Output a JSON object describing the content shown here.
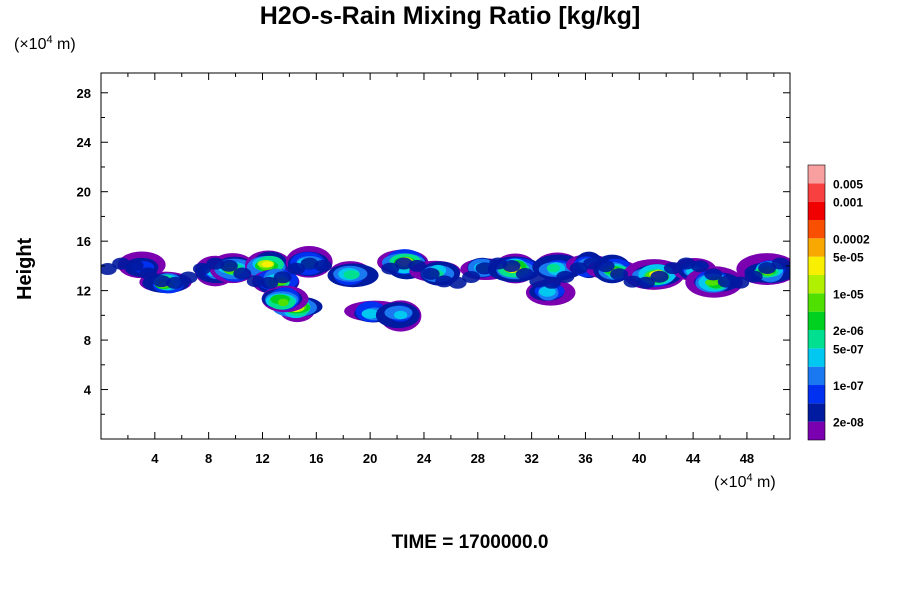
{
  "chart_data": {
    "type": "heatmap",
    "title": "H2O-s-Rain Mixing Ratio [kg/kg]",
    "ylabel": "Height",
    "y_unit": "(×10",
    "y_unit_exp": "4",
    "y_unit_suffix": " m)",
    "x_unit": "(×10",
    "x_unit_exp": "4",
    "x_unit_suffix": " m)",
    "xlim": [
      0,
      51.2
    ],
    "ylim": [
      0,
      29.6
    ],
    "x_ticks": [
      4,
      8,
      12,
      16,
      20,
      24,
      28,
      32,
      36,
      40,
      44,
      48
    ],
    "y_ticks": [
      4,
      8,
      12,
      16,
      20,
      24,
      28
    ],
    "x_tick_labels": [
      "4",
      "8",
      "12",
      "16",
      "20",
      "24",
      "28",
      "32",
      "36",
      "40",
      "44",
      "48"
    ],
    "y_tick_labels": [
      "4",
      "8",
      "12",
      "16",
      "20",
      "24",
      "28"
    ],
    "colorbar": {
      "levels": [
        "2e-08",
        "1e-07",
        "5e-07",
        "2e-06",
        "1e-05",
        "5e-05",
        "0.0002",
        "0.001",
        "0.005"
      ],
      "colors": [
        "#7a00b0",
        "#001aa0",
        "#0030f0",
        "#1a78f0",
        "#00c8f0",
        "#00e090",
        "#00d020",
        "#50e000",
        "#b0f000",
        "#f8f000",
        "#f8a800",
        "#f85000",
        "#f00000",
        "#f84040",
        "#f8a0a0"
      ]
    },
    "cells": [
      {
        "x": 3.2,
        "y": 14.0,
        "value": "1e-07"
      },
      {
        "x": 4.8,
        "y": 12.6,
        "value": "1e-05"
      },
      {
        "x": 8.5,
        "y": 13.5,
        "value": "5e-07"
      },
      {
        "x": 9.8,
        "y": 13.8,
        "value": "1e-05"
      },
      {
        "x": 12.4,
        "y": 14.0,
        "value": "5e-05"
      },
      {
        "x": 13.2,
        "y": 12.8,
        "value": "1e-05"
      },
      {
        "x": 15.3,
        "y": 14.3,
        "value": "2e-06"
      },
      {
        "x": 14.6,
        "y": 10.6,
        "value": "5e-05"
      },
      {
        "x": 13.5,
        "y": 11.2,
        "value": "1e-05"
      },
      {
        "x": 18.6,
        "y": 13.3,
        "value": "2e-06"
      },
      {
        "x": 22.6,
        "y": 14.2,
        "value": "5e-05"
      },
      {
        "x": 25.0,
        "y": 13.5,
        "value": "2e-06"
      },
      {
        "x": 28.5,
        "y": 13.8,
        "value": "2e-06"
      },
      {
        "x": 30.8,
        "y": 13.8,
        "value": "5e-05"
      },
      {
        "x": 33.8,
        "y": 13.8,
        "value": "2e-06"
      },
      {
        "x": 36.2,
        "y": 14.0,
        "value": "5e-07"
      },
      {
        "x": 38.2,
        "y": 13.6,
        "value": "1e-05"
      },
      {
        "x": 41.2,
        "y": 13.2,
        "value": "5e-05"
      },
      {
        "x": 44.2,
        "y": 13.6,
        "value": "5e-07"
      },
      {
        "x": 45.6,
        "y": 12.7,
        "value": "1e-05"
      },
      {
        "x": 49.6,
        "y": 13.6,
        "value": "1e-05"
      },
      {
        "x": 33.3,
        "y": 11.8,
        "value": "5e-07"
      },
      {
        "x": 20.2,
        "y": 10.2,
        "value": "5e-07"
      },
      {
        "x": 22.2,
        "y": 10.1,
        "value": "5e-07"
      }
    ]
  },
  "time_label": "TIME = 1700000.0"
}
